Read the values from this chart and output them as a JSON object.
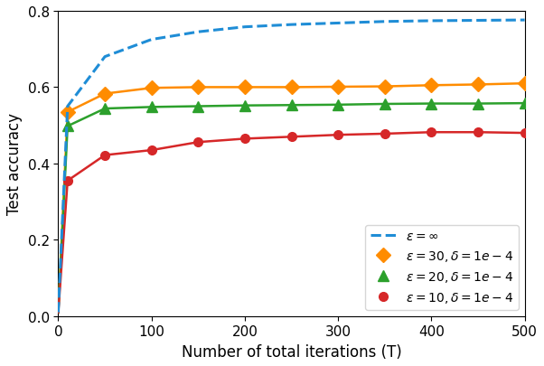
{
  "xlabel": "Number of total iterations (T)",
  "ylabel": "Test accuracy",
  "xlim": [
    0,
    500
  ],
  "ylim": [
    0.0,
    0.8
  ],
  "yticks": [
    0.0,
    0.2,
    0.4,
    0.6,
    0.8
  ],
  "xticks": [
    0,
    100,
    200,
    300,
    400,
    500
  ],
  "inf_x": [
    0,
    10,
    50,
    100,
    150,
    200,
    250,
    300,
    350,
    400,
    450,
    500
  ],
  "inf_y": [
    0.01,
    0.55,
    0.68,
    0.725,
    0.745,
    0.758,
    0.764,
    0.768,
    0.772,
    0.774,
    0.775,
    0.776
  ],
  "eps30_x": [
    0,
    10,
    50,
    100,
    150,
    200,
    250,
    300,
    350,
    400,
    450,
    500
  ],
  "eps30_y": [
    0.01,
    0.535,
    0.583,
    0.598,
    0.6,
    0.6,
    0.6,
    0.601,
    0.602,
    0.605,
    0.607,
    0.61
  ],
  "eps20_x": [
    0,
    10,
    50,
    100,
    150,
    200,
    250,
    300,
    350,
    400,
    450,
    500
  ],
  "eps20_y": [
    0.01,
    0.498,
    0.544,
    0.548,
    0.55,
    0.552,
    0.553,
    0.554,
    0.556,
    0.557,
    0.557,
    0.558
  ],
  "eps10_x": [
    0,
    10,
    50,
    100,
    150,
    200,
    250,
    300,
    350,
    400,
    450,
    500
  ],
  "eps10_y": [
    0.01,
    0.355,
    0.422,
    0.435,
    0.456,
    0.465,
    0.47,
    0.475,
    0.478,
    0.482,
    0.482,
    0.48
  ],
  "color_inf": "#1f8dd6",
  "color_eps30": "#ff8c00",
  "color_eps20": "#2ca02c",
  "color_eps10": "#d62728",
  "legend_inf": "$\\varepsilon = \\infty$",
  "legend_eps30": "$\\varepsilon = 30, \\delta = 1e-4$",
  "legend_eps20": "$\\varepsilon = 20, \\delta = 1e-4$",
  "legend_eps10": "$\\varepsilon = 10, \\delta = 1e-4$"
}
